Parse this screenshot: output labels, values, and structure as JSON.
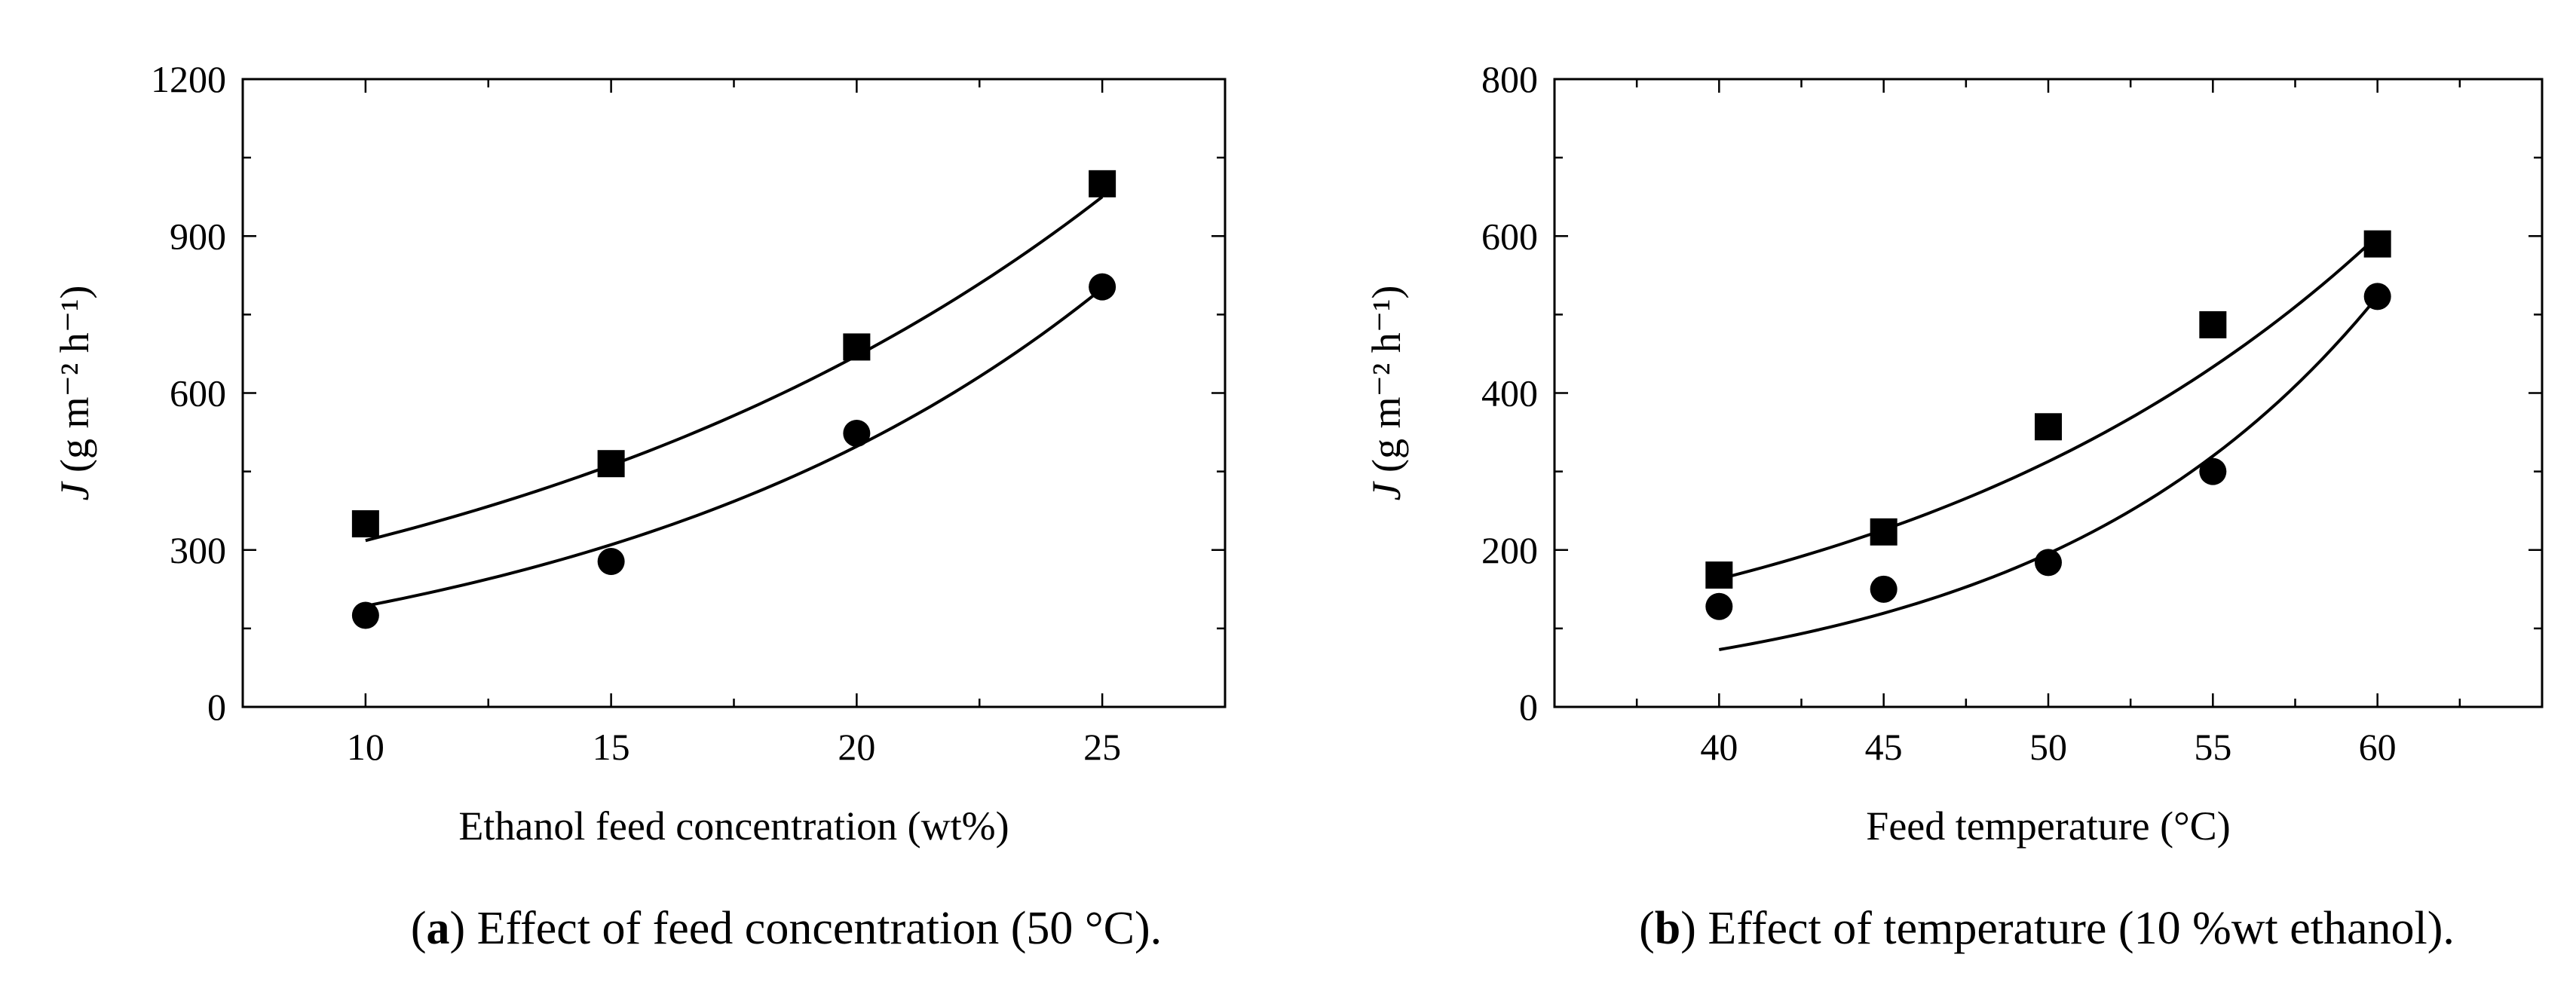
{
  "chart_data": [
    {
      "type": "scatter",
      "title": "",
      "caption_prefix": "a",
      "caption_text": ") Effect of feed concentration (50 °C).",
      "xlabel": "Ethanol feed concentration (wt%)",
      "ylabel_main": "J",
      "ylabel_unit": "(g m⁻² h⁻¹)",
      "xlim": [
        7.5,
        27.5
      ],
      "ylim": [
        0,
        1200
      ],
      "xticks": [
        10,
        15,
        20,
        25
      ],
      "yticks": [
        0,
        300,
        600,
        900,
        1200
      ],
      "series": [
        {
          "name": "squares",
          "marker": "square",
          "x": [
            10,
            15,
            20,
            25
          ],
          "y": [
            350,
            465,
            688,
            1000
          ],
          "fit": {
            "x": [
              10,
              25
            ],
            "y": [
              318,
              975
            ]
          }
        },
        {
          "name": "circles",
          "marker": "circle",
          "x": [
            10,
            15,
            20,
            25
          ],
          "y": [
            175,
            278,
            523,
            803
          ],
          "fit": {
            "x": [
              10,
              25
            ],
            "y": [
              193,
              800
            ]
          }
        }
      ]
    },
    {
      "type": "scatter",
      "title": "",
      "caption_prefix": "b",
      "caption_text": ") Effect of temperature (10 %wt ethanol).",
      "xlabel": "Feed temperature (°C)",
      "ylabel_main": "J",
      "ylabel_unit": "(g m⁻² h⁻¹)",
      "xlim": [
        35,
        65
      ],
      "ylim": [
        0,
        800
      ],
      "xticks": [
        40,
        45,
        50,
        55,
        60
      ],
      "yticks": [
        0,
        200,
        400,
        600,
        800
      ],
      "series": [
        {
          "name": "squares",
          "marker": "square",
          "x": [
            40,
            45,
            50,
            55,
            60
          ],
          "y": [
            168,
            223,
            357,
            487,
            590
          ],
          "fit": {
            "x": [
              40,
              60
            ],
            "y": [
              163,
              600
            ]
          }
        },
        {
          "name": "circles",
          "marker": "circle",
          "x": [
            40,
            45,
            50,
            55,
            60
          ],
          "y": [
            128,
            150,
            184,
            300,
            523
          ],
          "fit": {
            "x": [
              40,
              60
            ],
            "y": [
              73,
              523
            ]
          }
        }
      ]
    }
  ]
}
